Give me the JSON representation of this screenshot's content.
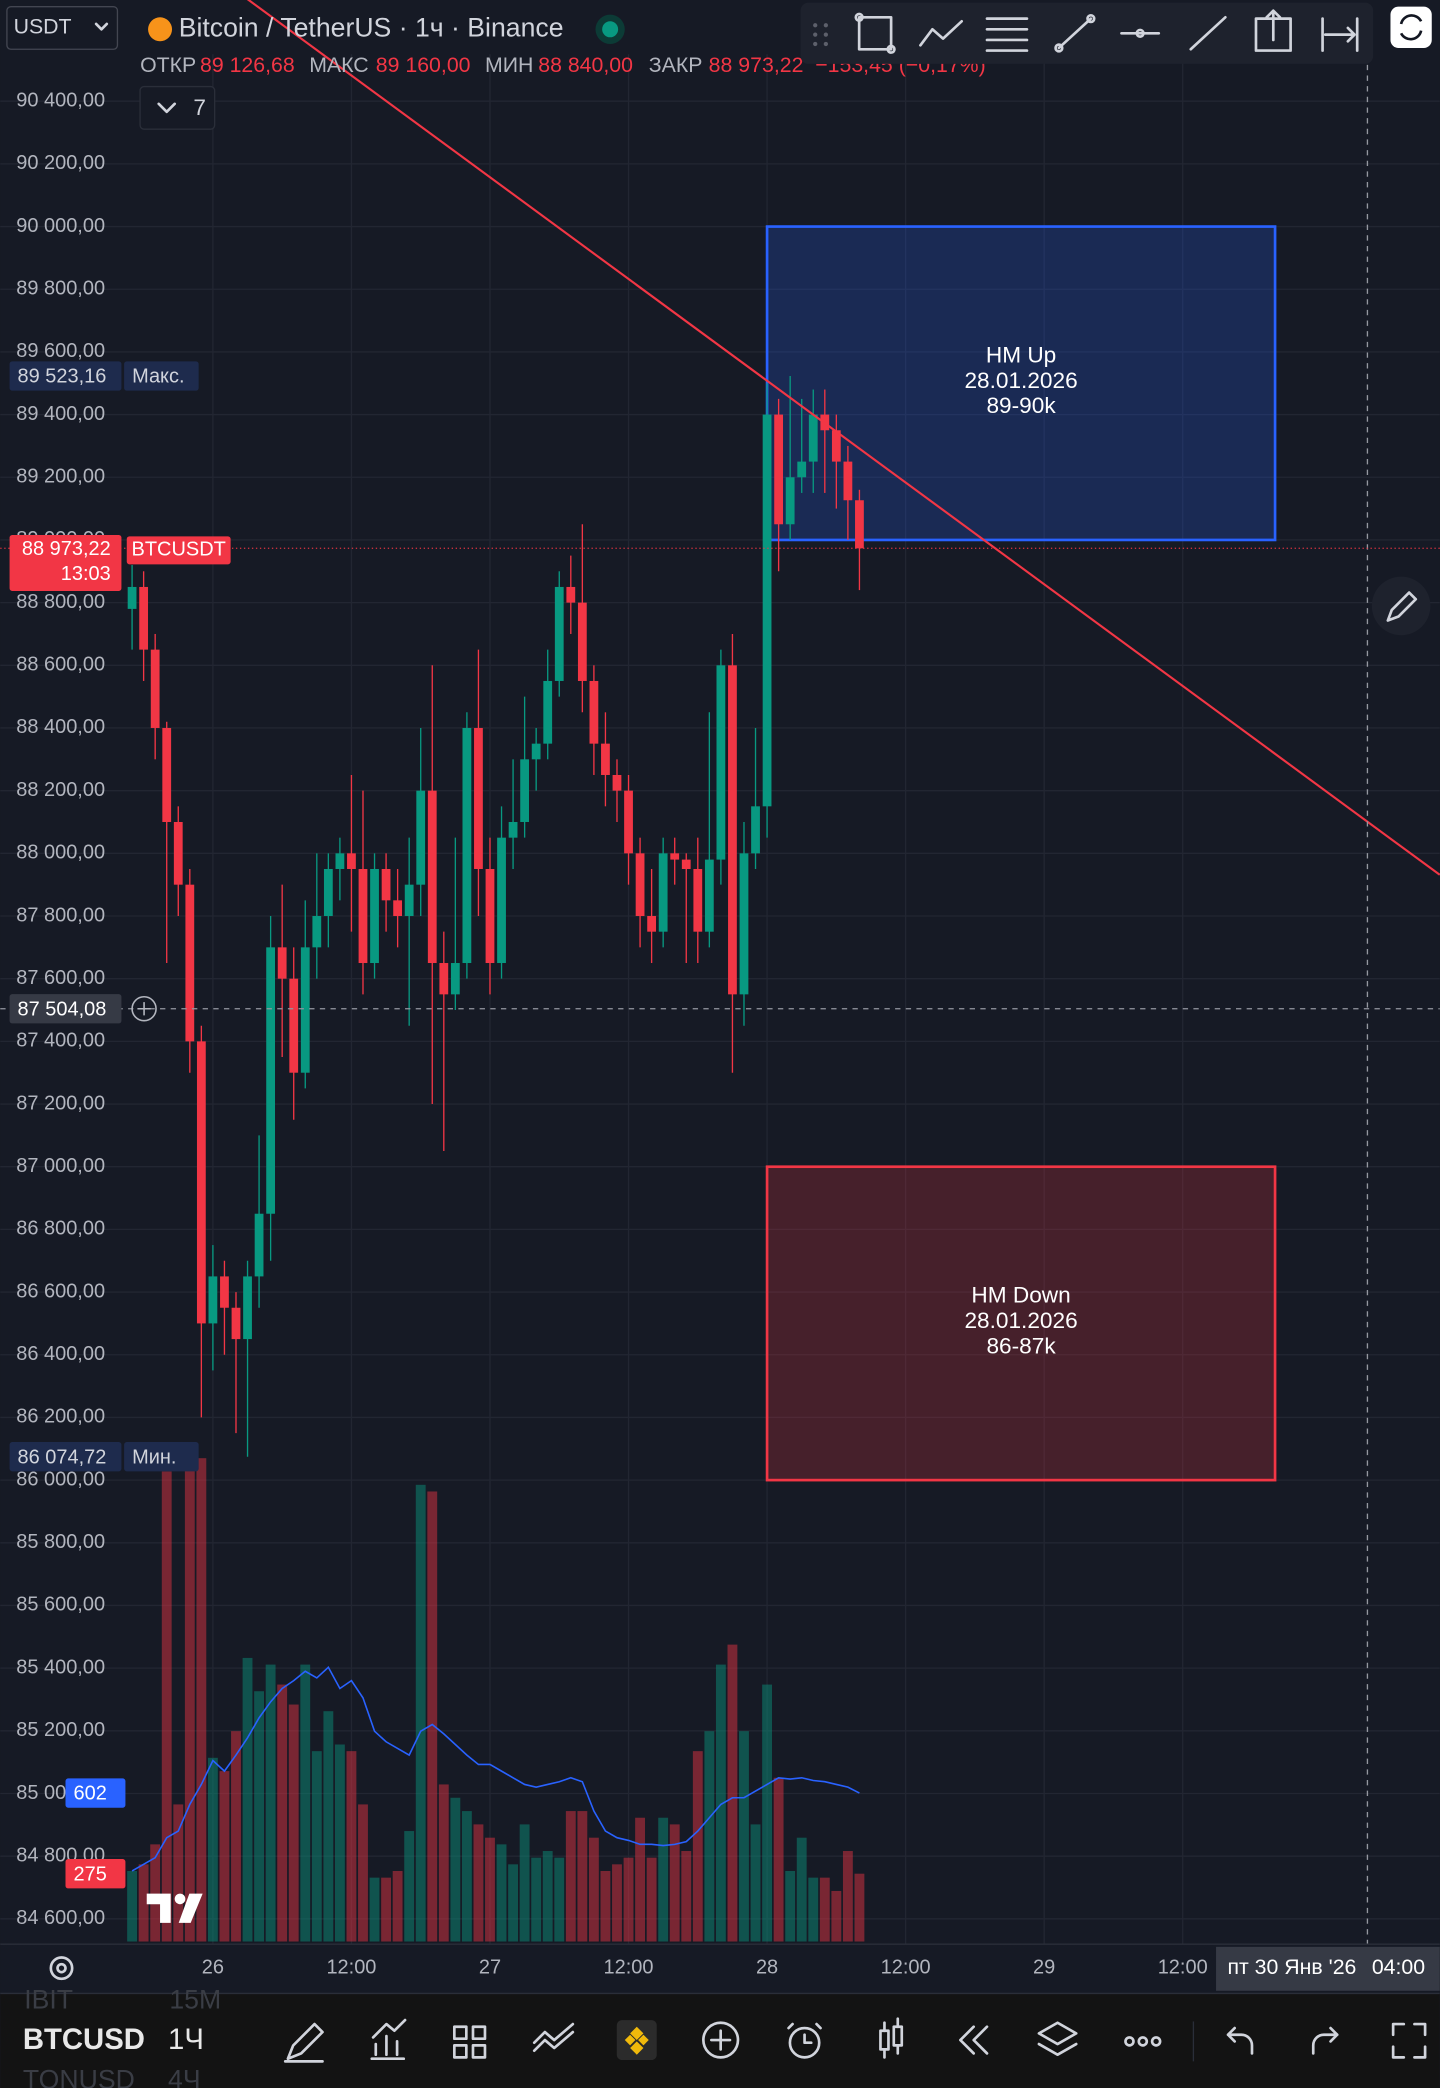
{
  "chart_data": {
    "type": "candlestick",
    "title": "Bitcoin / TetherUS · 1ч · Binance",
    "categories": [
      null,
      null,
      null,
      null,
      null,
      null,
      null,
      "26",
      null,
      null,
      null,
      null,
      null,
      null,
      null,
      null,
      null,
      null,
      null,
      "12:00",
      null,
      null,
      null,
      null,
      null,
      null,
      null,
      null,
      null,
      null,
      null,
      "27",
      null,
      null,
      null,
      null,
      null,
      null,
      null,
      null,
      null,
      null,
      null,
      "12:00",
      null,
      null,
      null,
      null,
      null,
      null,
      null,
      null,
      null,
      null,
      null,
      "28",
      null,
      null,
      null,
      null,
      null,
      null,
      null,
      null,
      null,
      null,
      null,
      "12:00",
      null,
      null,
      null,
      null,
      null,
      null,
      null,
      null,
      null,
      null,
      null,
      "29",
      null,
      null,
      null,
      null,
      null,
      null,
      null,
      null,
      null,
      null,
      null,
      "12:00",
      null,
      null,
      null,
      null,
      null,
      null,
      null,
      null,
      null,
      null,
      null,
      null,
      null,
      null,
      null,
      null
    ],
    "open": [
      88780,
      88850,
      88650,
      88400,
      88100,
      87900,
      87400,
      86500,
      86650,
      86550,
      86450,
      86650,
      86850,
      87700,
      87600,
      87300,
      87700,
      87800,
      87950,
      88000,
      87950,
      87650,
      87950,
      87850,
      87800,
      87900,
      88200,
      87650,
      87550,
      87650,
      88400,
      87950,
      87650,
      88050,
      88100,
      88300,
      88350,
      88550,
      88850,
      88800,
      88550,
      88350,
      88250,
      88200,
      88000,
      87800,
      87750,
      88000,
      87980,
      87950,
      87750,
      87980,
      88600,
      87550,
      88000,
      88150,
      89400,
      89050,
      89200,
      89250,
      89400,
      89350,
      89250,
      89126.68,
      null,
      null,
      null,
      null,
      null,
      null,
      null,
      null,
      null,
      null,
      null,
      null,
      null,
      null,
      null,
      null,
      null,
      null,
      null,
      null,
      null,
      null,
      null,
      null,
      null,
      null,
      null,
      null,
      null,
      null,
      null,
      null,
      null,
      null,
      null,
      null,
      null,
      null,
      null,
      null,
      null,
      null,
      null,
      null
    ],
    "high": [
      88920,
      88900,
      88700,
      88420,
      88150,
      87950,
      87450,
      86750,
      86700,
      86600,
      86700,
      87100,
      87800,
      87900,
      87700,
      87850,
      88000,
      88000,
      88050,
      88250,
      88200,
      88000,
      88000,
      87950,
      88050,
      88400,
      88600,
      87750,
      88050,
      88450,
      88650,
      88050,
      88150,
      88300,
      88500,
      88400,
      88650,
      88900,
      88950,
      89050,
      88600,
      88450,
      88300,
      88250,
      88050,
      87950,
      88050,
      88050,
      88000,
      88050,
      88450,
      88650,
      88700,
      88100,
      88400,
      89500,
      89450,
      89523.16,
      89450,
      89480,
      89480,
      89400,
      89300,
      89160,
      null,
      null,
      null,
      null,
      null,
      null,
      null,
      null,
      null,
      null,
      null,
      null,
      null,
      null,
      null,
      null,
      null,
      null,
      null,
      null,
      null,
      null,
      null,
      null,
      null,
      null,
      null,
      null,
      null,
      null,
      null,
      null,
      null,
      null,
      null,
      null,
      null,
      null,
      null,
      null,
      null,
      null,
      null,
      null
    ],
    "low": [
      88650,
      88550,
      88300,
      87650,
      87800,
      87300,
      86200,
      86350,
      86400,
      86150,
      86074.72,
      86550,
      86700,
      87350,
      87150,
      87250,
      87600,
      87700,
      87850,
      87750,
      87550,
      87600,
      87750,
      87700,
      87450,
      87800,
      87200,
      87050,
      87500,
      87600,
      87800,
      87550,
      87600,
      87950,
      88050,
      88200,
      88300,
      88500,
      88700,
      88450,
      88250,
      88150,
      88100,
      87900,
      87700,
      87650,
      87700,
      87900,
      87650,
      87650,
      87700,
      87900,
      87300,
      87450,
      87950,
      88050,
      88900,
      89000,
      89150,
      89150,
      89150,
      89100,
      89000,
      88840,
      null,
      null,
      null,
      null,
      null,
      null,
      null,
      null,
      null,
      null,
      null,
      null,
      null,
      null,
      null,
      null,
      null,
      null,
      null,
      null,
      null,
      null,
      null,
      null,
      null,
      null,
      null,
      null,
      null,
      null,
      null,
      null,
      null,
      null,
      null,
      null,
      null,
      null,
      null,
      null,
      null,
      null,
      null,
      null
    ],
    "close": [
      88850,
      88650,
      88400,
      88100,
      87900,
      87400,
      86500,
      86650,
      86550,
      86450,
      86650,
      86850,
      87700,
      87600,
      87300,
      87700,
      87800,
      87950,
      88000,
      87950,
      87650,
      87950,
      87850,
      87800,
      87900,
      88200,
      87650,
      87550,
      87650,
      88400,
      87950,
      87650,
      88050,
      88100,
      88300,
      88350,
      88550,
      88850,
      88800,
      88550,
      88350,
      88250,
      88200,
      88000,
      87800,
      87750,
      88000,
      87980,
      87950,
      87750,
      87980,
      88600,
      87550,
      88000,
      88150,
      89400,
      89050,
      89200,
      89250,
      89400,
      89350,
      89250,
      89126.68,
      88973.22,
      null,
      null,
      null,
      null,
      null,
      null,
      null,
      null,
      null,
      null,
      null,
      null,
      null,
      null,
      null,
      null,
      null,
      null,
      null,
      null,
      null,
      null,
      null,
      null,
      null,
      null,
      null,
      null,
      null,
      null,
      null,
      null,
      null,
      null,
      null,
      null,
      null,
      null,
      null,
      null,
      null,
      null,
      null,
      null
    ],
    "up_color": "#089981",
    "down_color": "#f23645",
    "volume": {
      "values": [
        286,
        313,
        394,
        1906,
        556,
        1933,
        1960,
        745,
        691,
        853,
        1150,
        1015,
        1123,
        1042,
        961,
        1123,
        772,
        934,
        799,
        772,
        556,
        259,
        259,
        286,
        448,
        1852,
        1825,
        637,
        583,
        529,
        475,
        421,
        394,
        313,
        475,
        340,
        367,
        340,
        529,
        529,
        421,
        286,
        313,
        340,
        502,
        340,
        502,
        475,
        367,
        772,
        853,
        1123,
        1204,
        853,
        475,
        1042,
        664,
        286,
        421,
        259,
        259,
        205,
        367,
        275,
        null,
        null,
        null,
        null,
        null,
        null,
        null,
        null,
        null,
        null,
        null,
        null,
        null,
        null,
        null,
        null,
        null,
        null,
        null,
        null,
        null,
        null,
        null,
        null,
        null,
        null,
        null,
        null,
        null,
        null,
        null,
        null,
        null,
        null,
        null,
        null,
        null,
        null,
        null,
        null,
        null,
        null,
        null,
        null
      ]
    },
    "volume_ma": {
      "color": "#2962ff",
      "values": [
        286,
        313,
        340,
        421,
        448,
        556,
        637,
        734,
        691,
        756,
        826,
        907,
        972,
        1026,
        1058,
        1096,
        1069,
        1112,
        1026,
        1058,
        988,
        853,
        810,
        783,
        756,
        853,
        880,
        842,
        799,
        756,
        718,
        718,
        691,
        664,
        637,
        626,
        637,
        648,
        664,
        648,
        529,
        448,
        421,
        410,
        394,
        394,
        389,
        394,
        405,
        448,
        502,
        556,
        583,
        583,
        610,
        637,
        664,
        659,
        664,
        653,
        648,
        637,
        626,
        602,
        null,
        null,
        null,
        null,
        null,
        null,
        null,
        null,
        null,
        null,
        null,
        null,
        null,
        null,
        null,
        null,
        null,
        null,
        null,
        null,
        null,
        null,
        null,
        null,
        null,
        null,
        null,
        null,
        null,
        null,
        null,
        null,
        null,
        null,
        null,
        null,
        null,
        null,
        null,
        null,
        null,
        null,
        null,
        null
      ]
    },
    "ylim": [
      84520,
      90550
    ],
    "yticks": [
      {
        "value": 84600,
        "label": "84 600,00"
      },
      {
        "value": 84800,
        "label": "84 800,00"
      },
      {
        "value": 85000,
        "label": "85 000,00"
      },
      {
        "value": 85200,
        "label": "85 200,00"
      },
      {
        "value": 85400,
        "label": "85 400,00"
      },
      {
        "value": 85600,
        "label": "85 600,00"
      },
      {
        "value": 85800,
        "label": "85 800,00"
      },
      {
        "value": 86000,
        "label": "86 000,00"
      },
      {
        "value": 86200,
        "label": "86 200,00"
      },
      {
        "value": 86400,
        "label": "86 400,00"
      },
      {
        "value": 86600,
        "label": "86 600,00"
      },
      {
        "value": 86800,
        "label": "86 800,00"
      },
      {
        "value": 87000,
        "label": "87 000,00"
      },
      {
        "value": 87200,
        "label": "87 200,00"
      },
      {
        "value": 87400,
        "label": "87 400,00"
      },
      {
        "value": 87600,
        "label": "87 600,00"
      },
      {
        "value": 87800,
        "label": "87 800,00"
      },
      {
        "value": 88000,
        "label": "88 000,00"
      },
      {
        "value": 88200,
        "label": "88 200,00"
      },
      {
        "value": 88400,
        "label": "88 400,00"
      },
      {
        "value": 88600,
        "label": "88 600,00"
      },
      {
        "value": 88800,
        "label": "88 800,00"
      },
      {
        "value": 89000,
        "label": "89 000,00"
      },
      {
        "value": 89200,
        "label": "89 200,00"
      },
      {
        "value": 89400,
        "label": "89 400,00"
      },
      {
        "value": 89600,
        "label": "89 600,00"
      },
      {
        "value": 89800,
        "label": "89 800,00"
      },
      {
        "value": 90000,
        "label": "90 000,00"
      },
      {
        "value": 90200,
        "label": "90 200,00"
      },
      {
        "value": 90400,
        "label": "90 400,00"
      }
    ],
    "grid": true,
    "boxes": [
      {
        "label": [
          "HM Up",
          "28.01.2026",
          "89-90k"
        ],
        "x0": 55,
        "x1": 99,
        "y0": 89000,
        "y1": 90000,
        "color": "#2962ff"
      },
      {
        "label": [
          "HM Down",
          "28.01.2026",
          "86-87k"
        ],
        "x0": 55,
        "x1": 99,
        "y0": 86000,
        "y1": 87000,
        "color": "#f23645"
      }
    ],
    "trendline": {
      "points": [
        [
          55,
          89508
        ],
        [
          107,
          88101
        ]
      ],
      "color": "#f23645"
    },
    "max_label": "Макс.",
    "max_value_label": "89 523,16",
    "min_label": "Мин.",
    "min_value_label": "86 074,72",
    "last_value_label": "88 973,22",
    "countdown": "13:03",
    "symbol_tag": "BTCUSDT",
    "crosshair": {
      "index": 107,
      "price": 87504.08,
      "price_label": "87 504,08",
      "date_label": "пт 30 Янв '26",
      "time_label": "04:00"
    }
  },
  "ui": {
    "symbol_select": "USDT",
    "ohlc": [
      {
        "key": "ОТКР",
        "value": "89 126,68"
      },
      {
        "key": "МАКС",
        "value": "89 160,00"
      },
      {
        "key": "МИН",
        "value": "88 840,00"
      },
      {
        "key": "ЗАКР",
        "value": "88 973,22"
      }
    ],
    "change": "−153,45 (−0,17%)",
    "indicators": 7,
    "bottom": {
      "symbol": "BTCUSD",
      "interval": "1Ч",
      "prev_symbol": "IBIT",
      "prev_interval": "15M",
      "next_symbol": "TONUSD",
      "next_interval": "4Ч"
    }
  }
}
